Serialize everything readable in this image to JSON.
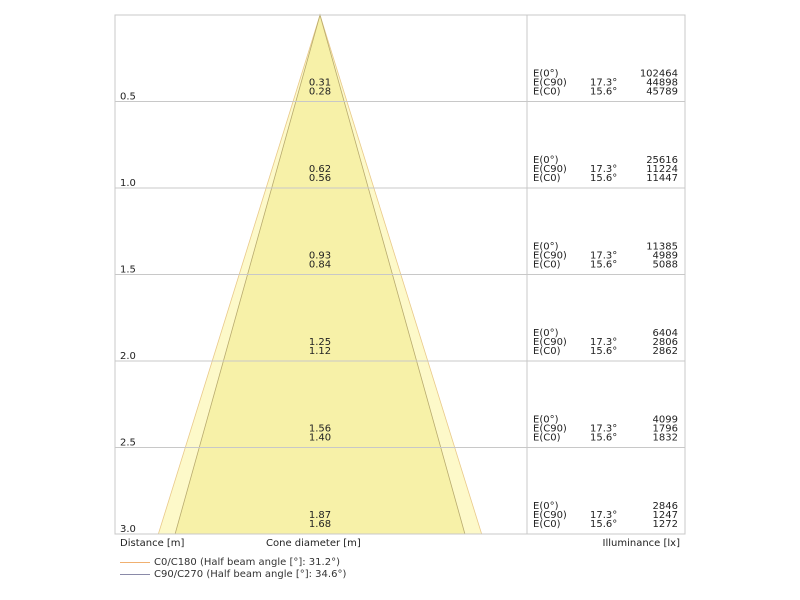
{
  "chart_data": {
    "type": "cone",
    "title": "",
    "xlabel": "Cone diameter [m]",
    "ylabel": "Distance [m]",
    "rlabel": "Illuminance [lx]",
    "ylim": [
      0,
      3.0
    ],
    "grid": true,
    "colors": {
      "outer_cone": "#fdf9c9",
      "inner_cone": "#f7f1a8",
      "outer_edge": "#e9c98a",
      "inner_edge": "#b8aa6e",
      "grid": "#c8c8c8"
    },
    "series": [
      {
        "name": "C0/C180 (Half beam angle [°]: 31.2°)",
        "half_angle": 15.6,
        "color": "#f0b070",
        "diameters": [
          "0.28",
          "0.56",
          "0.84",
          "1.12",
          "1.40",
          "1.68"
        ]
      },
      {
        "name": "C90/C270 (Half beam angle [°]: 34.6°)",
        "half_angle": 17.3,
        "color": "#8a8aa8",
        "diameters": [
          "0.31",
          "0.62",
          "0.93",
          "1.25",
          "1.56",
          "1.87"
        ]
      }
    ],
    "rows": [
      {
        "distance": "0.5",
        "e0_label": "E(0°)",
        "e0": "102464",
        "ec90_label": "E(C90)",
        "ec90_angle": "17.3°",
        "ec90": "44898",
        "ec0_label": "E(C0)",
        "ec0_angle": "15.6°",
        "ec0": "45789"
      },
      {
        "distance": "1.0",
        "e0_label": "E(0°)",
        "e0": "25616",
        "ec90_label": "E(C90)",
        "ec90_angle": "17.3°",
        "ec90": "11224",
        "ec0_label": "E(C0)",
        "ec0_angle": "15.6°",
        "ec0": "11447"
      },
      {
        "distance": "1.5",
        "e0_label": "E(0°)",
        "e0": "11385",
        "ec90_label": "E(C90)",
        "ec90_angle": "17.3°",
        "ec90": "4989",
        "ec0_label": "E(C0)",
        "ec0_angle": "15.6°",
        "ec0": "5088"
      },
      {
        "distance": "2.0",
        "e0_label": "E(0°)",
        "e0": "6404",
        "ec90_label": "E(C90)",
        "ec90_angle": "17.3°",
        "ec90": "2806",
        "ec0_label": "E(C0)",
        "ec0_angle": "15.6°",
        "ec0": "2862"
      },
      {
        "distance": "2.5",
        "e0_label": "E(0°)",
        "e0": "4099",
        "ec90_label": "E(C90)",
        "ec90_angle": "17.3°",
        "ec90": "1796",
        "ec0_label": "E(C0)",
        "ec0_angle": "15.6°",
        "ec0": "1832"
      },
      {
        "distance": "3.0",
        "e0_label": "E(0°)",
        "e0": "2846",
        "ec90_label": "E(C90)",
        "ec90_angle": "17.3°",
        "ec90": "1247",
        "ec0_label": "E(C0)",
        "ec0_angle": "15.6°",
        "ec0": "1272"
      }
    ]
  }
}
